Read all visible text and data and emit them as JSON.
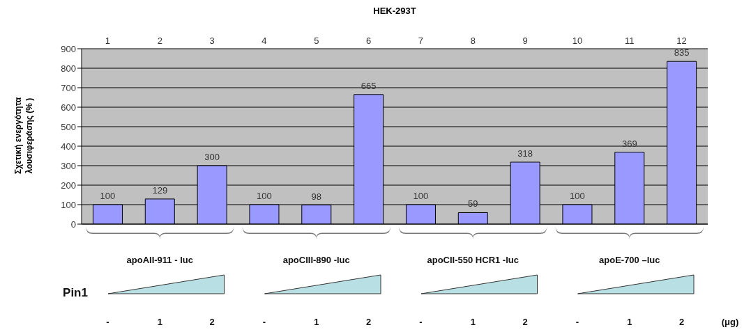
{
  "chart_data": {
    "type": "bar",
    "title": "HEK-293T",
    "ylabel": "Σχετική ενεργότητα λουσιφεράσης (% )",
    "categories": [
      "1",
      "2",
      "3",
      "4",
      "5",
      "6",
      "7",
      "8",
      "9",
      "10",
      "11",
      "12"
    ],
    "values": [
      100,
      129,
      300,
      100,
      98,
      665,
      100,
      59,
      318,
      100,
      369,
      835
    ],
    "color": "#9999ff",
    "ylim": [
      0,
      900
    ],
    "yticks": [
      0,
      100,
      200,
      300,
      400,
      500,
      600,
      700,
      800,
      900
    ],
    "grid": "y",
    "data_labels": true,
    "annotations": [
      "apoAII-911 - luc",
      "apoCIII-890 -luc",
      "apoCII-550 HCR1 -luc",
      "apoE-700 –luc",
      "Pin1",
      "-",
      "1",
      "2",
      "-",
      "1",
      "2",
      "-",
      "1",
      "2",
      "-",
      "1",
      "2",
      "(μg)"
    ]
  }
}
